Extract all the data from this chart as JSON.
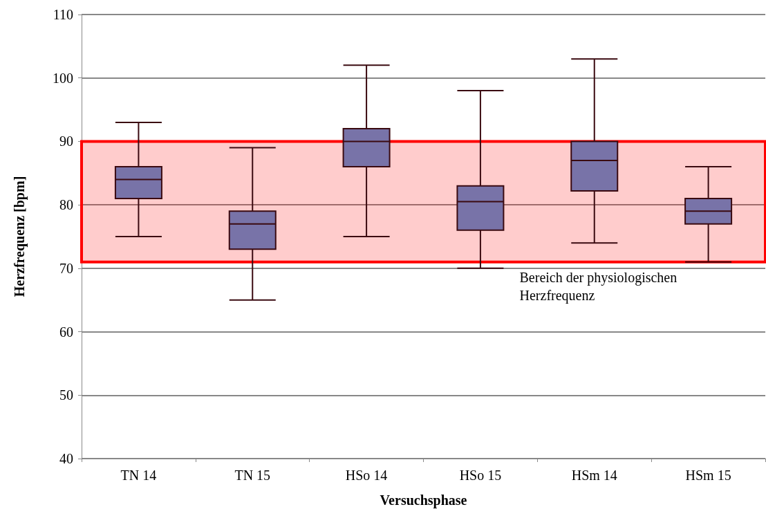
{
  "chart_data": {
    "type": "box",
    "xlabel": "Versuchsphase",
    "ylabel": "Herzfrequenz [bpm]",
    "categories": [
      "TN 14",
      "TN 15",
      "HSo 14",
      "HSo 15",
      "HSm 14",
      "HSm 15"
    ],
    "series": [
      {
        "color": "#7873a8",
        "boxes": [
          {
            "low": 75,
            "q1": 81,
            "median": 84,
            "q3": 86,
            "high": 93
          },
          {
            "low": 65,
            "q1": 73,
            "median": 77,
            "q3": 79,
            "high": 89
          },
          {
            "low": 75,
            "q1": 86,
            "median": 90,
            "q3": 92,
            "high": 102
          },
          {
            "low": 70,
            "q1": 76,
            "median": 80.5,
            "q3": 83,
            "high": 98
          },
          {
            "low": 74,
            "q1": 82.2,
            "median": 87,
            "q3": 90,
            "high": 103
          },
          {
            "low": 71,
            "q1": 77,
            "median": 79,
            "q3": 81,
            "high": 86
          }
        ]
      }
    ],
    "ylim": [
      40,
      110
    ],
    "yticks": [
      40,
      50,
      60,
      70,
      80,
      90,
      100,
      110
    ],
    "grid": "y",
    "bands": [
      {
        "axis": "y",
        "from": 71,
        "to": 90,
        "label": "Bereich der physiologischen\nHerzfrequenz",
        "color": "#ff0000"
      }
    ]
  }
}
